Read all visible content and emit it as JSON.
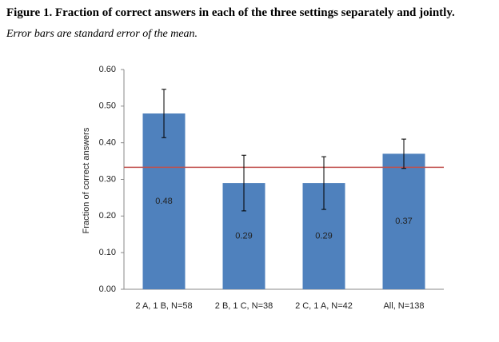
{
  "chart_data": {
    "type": "bar",
    "title": "Figure 1. Fraction of correct answers in each of the three settings separately and jointly.",
    "subtitle": "Error bars are standard error of the mean.",
    "y_label": "Fraction of correct answers",
    "categories": [
      "2 A, 1 B, N=58",
      "2 B, 1 C, N=38",
      "2 C, 1 A, N=42",
      "All, N=138"
    ],
    "values": [
      0.48,
      0.29,
      0.29,
      0.37
    ],
    "errors": [
      0.066,
      0.076,
      0.072,
      0.04
    ],
    "color": "#4f81bd",
    "reference_line": 0.333,
    "reference_color": "#c0504d",
    "ylim": [
      0,
      0.6
    ],
    "yticks": [
      {
        "value": 0,
        "label": "0.00"
      },
      {
        "value": 0.1,
        "label": "0.10"
      },
      {
        "value": 0.2,
        "label": "0.20"
      },
      {
        "value": 0.3,
        "label": "0.30"
      },
      {
        "value": 0.4,
        "label": "0.40"
      },
      {
        "value": 0.5,
        "label": "0.50"
      },
      {
        "value": 0.6,
        "label": "0.60"
      }
    ]
  }
}
